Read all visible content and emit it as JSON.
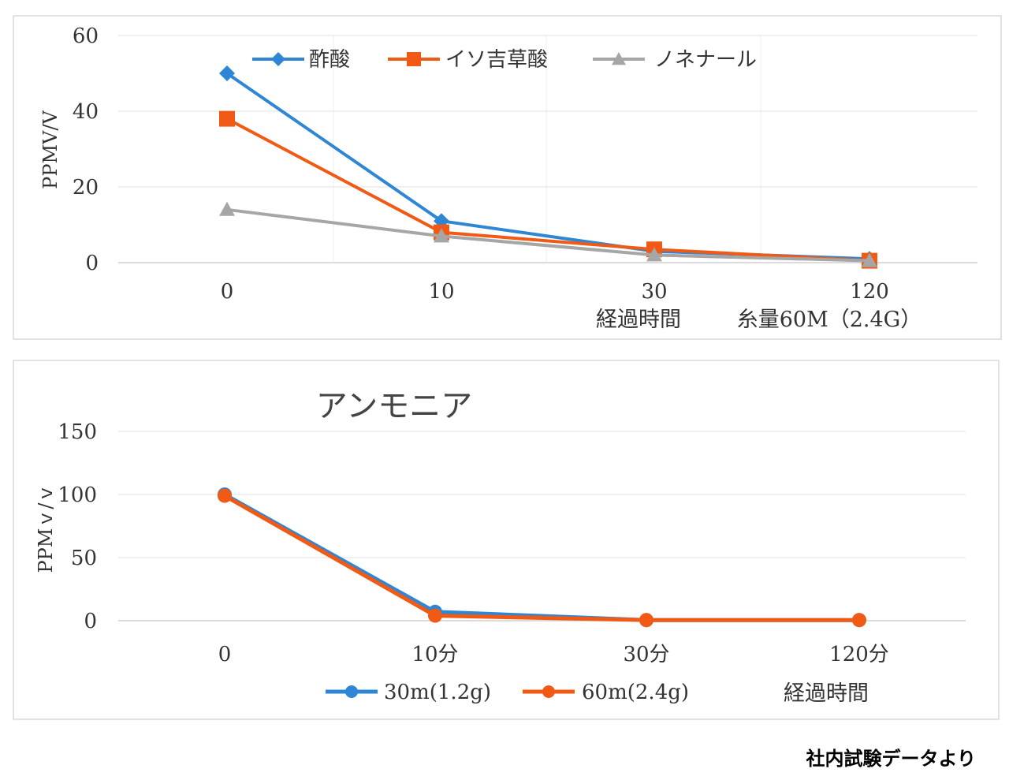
{
  "source_note": "社内試験データより",
  "chart_data": [
    {
      "type": "line",
      "title": "",
      "categories": [
        "0",
        "10",
        "30",
        "120"
      ],
      "xlabel": "経過時間",
      "note": "糸量60M（2.4G）",
      "ylabel": "PPMV/V",
      "ylim": [
        0,
        60
      ],
      "yticks": [
        0,
        20,
        40,
        60
      ],
      "legend_position": "top",
      "series": [
        {
          "name": "酢酸",
          "color": "#2e86d4",
          "marker": "diamond",
          "values": [
            50,
            11,
            3,
            1
          ]
        },
        {
          "name": "イソ吉草酸",
          "color": "#f05a14",
          "marker": "square",
          "values": [
            38,
            8,
            3.5,
            0.5
          ]
        },
        {
          "name": "ノネナール",
          "color": "#a6a6a6",
          "marker": "triangle",
          "values": [
            14,
            7,
            2,
            0.5
          ]
        }
      ]
    },
    {
      "type": "line",
      "title": "アンモニア",
      "categories": [
        "0",
        "10分",
        "30分",
        "120分"
      ],
      "xlabel": "経過時間",
      "ylabel": "PPMｖ/ｖ",
      "ylim": [
        0,
        150
      ],
      "yticks": [
        0,
        50,
        100,
        150
      ],
      "legend_position": "bottom",
      "series": [
        {
          "name": "30m(1.2g)",
          "color": "#2e86d4",
          "marker": "circle",
          "values": [
            100,
            7,
            0.5,
            0.5
          ]
        },
        {
          "name": "60m(2.4g)",
          "color": "#f05a14",
          "marker": "circle",
          "values": [
            99,
            4,
            0.5,
            0.5
          ]
        }
      ]
    }
  ]
}
